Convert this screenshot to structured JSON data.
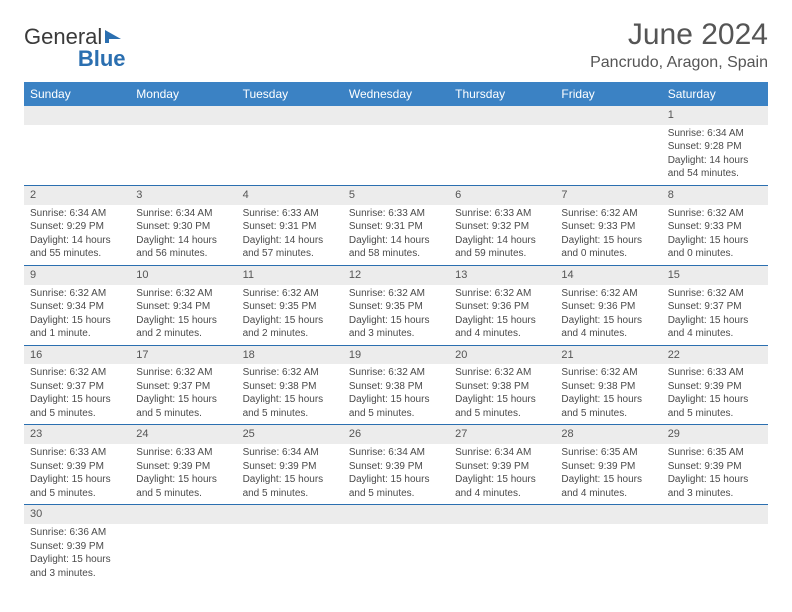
{
  "logo": {
    "part1": "General",
    "part2": "Blue"
  },
  "header": {
    "month": "June 2024",
    "location": "Pancrudo, Aragon, Spain"
  },
  "colors": {
    "header_bg": "#3b82c4",
    "header_text": "#ffffff",
    "row_divider": "#2b6fb0",
    "daynum_bg": "#ececec",
    "text": "#4a4a4a",
    "logo_blue": "#2b6fb0"
  },
  "weekdays": [
    "Sunday",
    "Monday",
    "Tuesday",
    "Wednesday",
    "Thursday",
    "Friday",
    "Saturday"
  ],
  "weeks": [
    [
      {
        "day": "",
        "lines": [
          "",
          "",
          "",
          ""
        ]
      },
      {
        "day": "",
        "lines": [
          "",
          "",
          "",
          ""
        ]
      },
      {
        "day": "",
        "lines": [
          "",
          "",
          "",
          ""
        ]
      },
      {
        "day": "",
        "lines": [
          "",
          "",
          "",
          ""
        ]
      },
      {
        "day": "",
        "lines": [
          "",
          "",
          "",
          ""
        ]
      },
      {
        "day": "",
        "lines": [
          "",
          "",
          "",
          ""
        ]
      },
      {
        "day": "1",
        "lines": [
          "Sunrise: 6:34 AM",
          "Sunset: 9:28 PM",
          "Daylight: 14 hours",
          "and 54 minutes."
        ]
      }
    ],
    [
      {
        "day": "2",
        "lines": [
          "Sunrise: 6:34 AM",
          "Sunset: 9:29 PM",
          "Daylight: 14 hours",
          "and 55 minutes."
        ]
      },
      {
        "day": "3",
        "lines": [
          "Sunrise: 6:34 AM",
          "Sunset: 9:30 PM",
          "Daylight: 14 hours",
          "and 56 minutes."
        ]
      },
      {
        "day": "4",
        "lines": [
          "Sunrise: 6:33 AM",
          "Sunset: 9:31 PM",
          "Daylight: 14 hours",
          "and 57 minutes."
        ]
      },
      {
        "day": "5",
        "lines": [
          "Sunrise: 6:33 AM",
          "Sunset: 9:31 PM",
          "Daylight: 14 hours",
          "and 58 minutes."
        ]
      },
      {
        "day": "6",
        "lines": [
          "Sunrise: 6:33 AM",
          "Sunset: 9:32 PM",
          "Daylight: 14 hours",
          "and 59 minutes."
        ]
      },
      {
        "day": "7",
        "lines": [
          "Sunrise: 6:32 AM",
          "Sunset: 9:33 PM",
          "Daylight: 15 hours",
          "and 0 minutes."
        ]
      },
      {
        "day": "8",
        "lines": [
          "Sunrise: 6:32 AM",
          "Sunset: 9:33 PM",
          "Daylight: 15 hours",
          "and 0 minutes."
        ]
      }
    ],
    [
      {
        "day": "9",
        "lines": [
          "Sunrise: 6:32 AM",
          "Sunset: 9:34 PM",
          "Daylight: 15 hours",
          "and 1 minute."
        ]
      },
      {
        "day": "10",
        "lines": [
          "Sunrise: 6:32 AM",
          "Sunset: 9:34 PM",
          "Daylight: 15 hours",
          "and 2 minutes."
        ]
      },
      {
        "day": "11",
        "lines": [
          "Sunrise: 6:32 AM",
          "Sunset: 9:35 PM",
          "Daylight: 15 hours",
          "and 2 minutes."
        ]
      },
      {
        "day": "12",
        "lines": [
          "Sunrise: 6:32 AM",
          "Sunset: 9:35 PM",
          "Daylight: 15 hours",
          "and 3 minutes."
        ]
      },
      {
        "day": "13",
        "lines": [
          "Sunrise: 6:32 AM",
          "Sunset: 9:36 PM",
          "Daylight: 15 hours",
          "and 4 minutes."
        ]
      },
      {
        "day": "14",
        "lines": [
          "Sunrise: 6:32 AM",
          "Sunset: 9:36 PM",
          "Daylight: 15 hours",
          "and 4 minutes."
        ]
      },
      {
        "day": "15",
        "lines": [
          "Sunrise: 6:32 AM",
          "Sunset: 9:37 PM",
          "Daylight: 15 hours",
          "and 4 minutes."
        ]
      }
    ],
    [
      {
        "day": "16",
        "lines": [
          "Sunrise: 6:32 AM",
          "Sunset: 9:37 PM",
          "Daylight: 15 hours",
          "and 5 minutes."
        ]
      },
      {
        "day": "17",
        "lines": [
          "Sunrise: 6:32 AM",
          "Sunset: 9:37 PM",
          "Daylight: 15 hours",
          "and 5 minutes."
        ]
      },
      {
        "day": "18",
        "lines": [
          "Sunrise: 6:32 AM",
          "Sunset: 9:38 PM",
          "Daylight: 15 hours",
          "and 5 minutes."
        ]
      },
      {
        "day": "19",
        "lines": [
          "Sunrise: 6:32 AM",
          "Sunset: 9:38 PM",
          "Daylight: 15 hours",
          "and 5 minutes."
        ]
      },
      {
        "day": "20",
        "lines": [
          "Sunrise: 6:32 AM",
          "Sunset: 9:38 PM",
          "Daylight: 15 hours",
          "and 5 minutes."
        ]
      },
      {
        "day": "21",
        "lines": [
          "Sunrise: 6:32 AM",
          "Sunset: 9:38 PM",
          "Daylight: 15 hours",
          "and 5 minutes."
        ]
      },
      {
        "day": "22",
        "lines": [
          "Sunrise: 6:33 AM",
          "Sunset: 9:39 PM",
          "Daylight: 15 hours",
          "and 5 minutes."
        ]
      }
    ],
    [
      {
        "day": "23",
        "lines": [
          "Sunrise: 6:33 AM",
          "Sunset: 9:39 PM",
          "Daylight: 15 hours",
          "and 5 minutes."
        ]
      },
      {
        "day": "24",
        "lines": [
          "Sunrise: 6:33 AM",
          "Sunset: 9:39 PM",
          "Daylight: 15 hours",
          "and 5 minutes."
        ]
      },
      {
        "day": "25",
        "lines": [
          "Sunrise: 6:34 AM",
          "Sunset: 9:39 PM",
          "Daylight: 15 hours",
          "and 5 minutes."
        ]
      },
      {
        "day": "26",
        "lines": [
          "Sunrise: 6:34 AM",
          "Sunset: 9:39 PM",
          "Daylight: 15 hours",
          "and 5 minutes."
        ]
      },
      {
        "day": "27",
        "lines": [
          "Sunrise: 6:34 AM",
          "Sunset: 9:39 PM",
          "Daylight: 15 hours",
          "and 4 minutes."
        ]
      },
      {
        "day": "28",
        "lines": [
          "Sunrise: 6:35 AM",
          "Sunset: 9:39 PM",
          "Daylight: 15 hours",
          "and 4 minutes."
        ]
      },
      {
        "day": "29",
        "lines": [
          "Sunrise: 6:35 AM",
          "Sunset: 9:39 PM",
          "Daylight: 15 hours",
          "and 3 minutes."
        ]
      }
    ],
    [
      {
        "day": "30",
        "lines": [
          "Sunrise: 6:36 AM",
          "Sunset: 9:39 PM",
          "Daylight: 15 hours",
          "and 3 minutes."
        ]
      },
      {
        "day": "",
        "lines": [
          "",
          "",
          "",
          ""
        ]
      },
      {
        "day": "",
        "lines": [
          "",
          "",
          "",
          ""
        ]
      },
      {
        "day": "",
        "lines": [
          "",
          "",
          "",
          ""
        ]
      },
      {
        "day": "",
        "lines": [
          "",
          "",
          "",
          ""
        ]
      },
      {
        "day": "",
        "lines": [
          "",
          "",
          "",
          ""
        ]
      },
      {
        "day": "",
        "lines": [
          "",
          "",
          "",
          ""
        ]
      }
    ]
  ]
}
